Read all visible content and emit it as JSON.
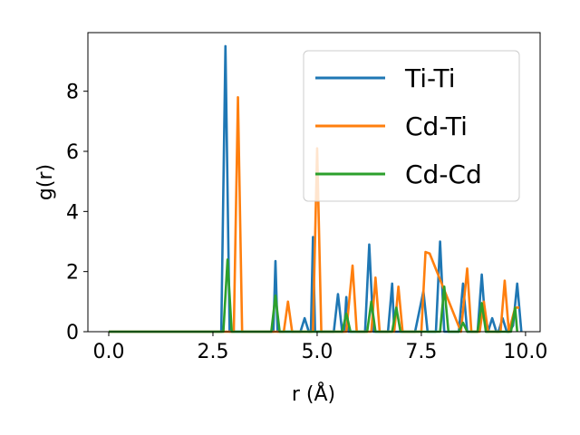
{
  "chart_data": {
    "type": "line",
    "title": "",
    "xlabel": "r (Å)",
    "ylabel": "g(r)",
    "xlim": [
      -0.5,
      10.35
    ],
    "ylim": [
      0,
      9.95
    ],
    "xticks": [
      0.0,
      2.5,
      5.0,
      7.5,
      10.0
    ],
    "xtick_labels": [
      "0.0",
      "2.5",
      "5.0",
      "7.5",
      "10.0"
    ],
    "yticks": [
      0,
      2,
      4,
      6,
      8
    ],
    "ytick_labels": [
      "0",
      "2",
      "4",
      "6",
      "8"
    ],
    "grid": false,
    "legend_position": "top-right",
    "series": [
      {
        "name": "Ti-Ti",
        "color": "#1f77b4",
        "x": [
          0.0,
          2.7,
          2.8,
          2.9,
          3.95,
          4.0,
          4.05,
          4.6,
          4.7,
          4.8,
          4.85,
          4.9,
          4.95,
          5.05,
          5.4,
          5.5,
          5.6,
          5.65,
          5.7,
          5.75,
          6.15,
          6.25,
          6.35,
          6.7,
          6.8,
          6.85,
          7.35,
          7.55,
          7.65,
          7.85,
          7.95,
          8.05,
          8.4,
          8.5,
          8.6,
          8.85,
          8.95,
          9.05,
          9.1,
          9.2,
          9.3,
          9.35,
          9.45,
          9.55,
          9.6,
          9.7,
          9.8,
          9.9
        ],
        "y": [
          0,
          0,
          9.5,
          0,
          0,
          2.35,
          0,
          0,
          0.45,
          0,
          0,
          3.15,
          0,
          0,
          0,
          1.25,
          0,
          0,
          1.15,
          0,
          0,
          2.9,
          0,
          0,
          1.6,
          0,
          0,
          1.35,
          0,
          0,
          3.0,
          0,
          0,
          1.6,
          0,
          0,
          1.9,
          0,
          0,
          0.45,
          0,
          0,
          0.45,
          0,
          0,
          0.2,
          1.6,
          0
        ]
      },
      {
        "name": "Cd-Ti",
        "color": "#ff7f0e",
        "x": [
          0.0,
          3.0,
          3.1,
          3.2,
          4.2,
          4.3,
          4.4,
          4.9,
          5.0,
          5.1,
          5.7,
          5.85,
          5.95,
          6.3,
          6.4,
          6.5,
          6.85,
          6.95,
          7.05,
          7.5,
          7.6,
          7.7,
          8.45,
          8.6,
          8.7,
          8.9,
          9.0,
          9.1,
          9.4,
          9.5,
          9.6,
          9.75,
          9.85
        ],
        "y": [
          0,
          0,
          7.8,
          0,
          0,
          1.0,
          0,
          0,
          6.1,
          0,
          0,
          2.2,
          0,
          0,
          1.8,
          0,
          0,
          1.5,
          0,
          0,
          2.65,
          2.6,
          0,
          2.1,
          0,
          0,
          1.0,
          0,
          0,
          1.7,
          0,
          0.8,
          0.8
        ]
      },
      {
        "name": "Cd-Cd",
        "color": "#2ca02c",
        "x": [
          0.0,
          2.75,
          2.85,
          2.95,
          3.9,
          4.0,
          4.1,
          5.6,
          5.7,
          5.8,
          6.2,
          6.3,
          6.4,
          6.8,
          6.9,
          7.0,
          7.95,
          8.05,
          8.15,
          8.4,
          8.5,
          8.6,
          8.85,
          8.95,
          9.05,
          9.65,
          9.75,
          9.8
        ],
        "y": [
          0,
          0,
          2.4,
          0,
          0,
          1.2,
          0,
          0,
          0.6,
          0,
          0,
          1.0,
          0,
          0,
          0.8,
          0,
          0,
          1.5,
          0,
          0,
          0.3,
          0,
          0,
          0.95,
          0,
          0,
          0.8,
          0
        ]
      }
    ]
  }
}
